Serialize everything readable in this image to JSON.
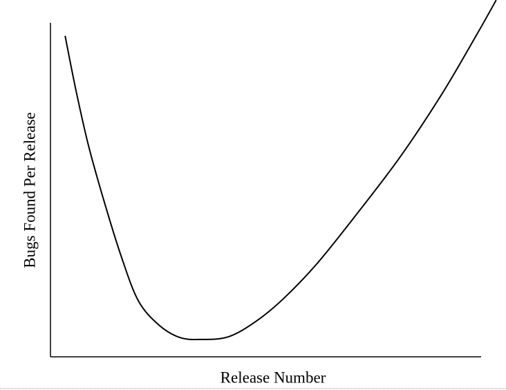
{
  "chart_data": {
    "type": "line",
    "x_label": "Release Number",
    "y_label": "Bugs Found Per Release",
    "xlim": [
      0,
      100
    ],
    "ylim": [
      0,
      100
    ],
    "x": [
      3.4,
      5.9,
      8.8,
      12.4,
      16.4,
      20.4,
      25.2,
      30.0,
      34.8,
      41.3,
      47.7,
      54.1,
      62.1,
      71.7,
      81.4,
      91.0,
      99.0,
      103.5
    ],
    "series": [
      {
        "color": "#000000",
        "values": [
          96.1,
          79.9,
          63.4,
          46.8,
          30.2,
          16.8,
          9.5,
          5.8,
          5.2,
          6.0,
          10.6,
          17.4,
          28.2,
          43.7,
          60.2,
          78.9,
          96.5,
          106.8
        ]
      }
    ]
  }
}
